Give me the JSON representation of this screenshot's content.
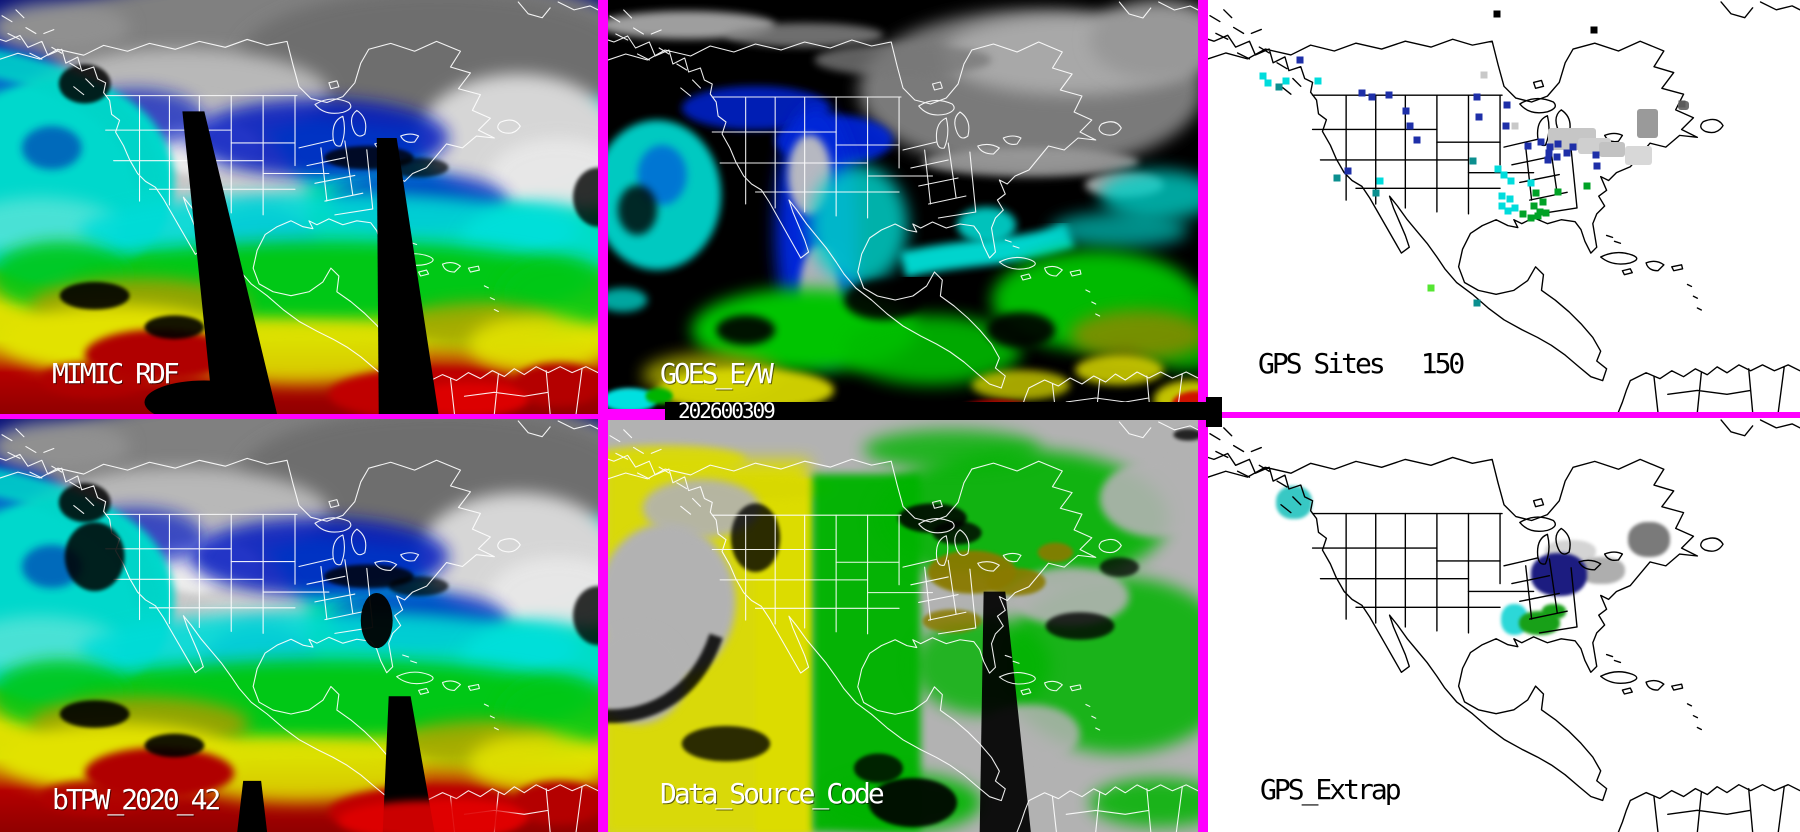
{
  "panels": {
    "mimic": {
      "label": "MIMIC RDF"
    },
    "goes": {
      "label": "GOES_E/W"
    },
    "gps_sites": {
      "label": "GPS Sites",
      "count": "150"
    },
    "btpw": {
      "label": "bTPW_2020_42"
    },
    "data_source": {
      "label": "Data_Source_Code"
    },
    "gps_extrap": {
      "label": "GPS_Extrap"
    }
  },
  "date_bar": {
    "text": "202600309"
  },
  "palette": {
    "border_magenta": "#ff00ff",
    "tpw_navy": "#0018b0",
    "tpw_cyan": "#00dcd8",
    "tpw_green": "#00c814",
    "tpw_yellow": "#e2e200",
    "tpw_khaki": "#a0a000",
    "tpw_dark_red": "#b00000",
    "tpw_red": "#e00000",
    "cloud_gray": "#b8b8b8",
    "dsc_gray": "#b2b2b2",
    "dsc_yellow": "#dcdc00",
    "dsc_green": "#00b400",
    "dsc_brown": "#8a7a00",
    "dot_navy": "#1e2fa8",
    "dot_cyan": "#00dcdc",
    "dot_teal": "#0b8f8f",
    "dot_green": "#00a226",
    "dot_light_green": "#55e632",
    "dot_gray": "#8a8a8a",
    "dot_light_gray": "#c8c8c8",
    "dot_dark_gray": "#5a5a5a",
    "dot_black": "#000000"
  },
  "gps_sites_map": {
    "dots": [
      [
        15.5,
        14.5,
        "navy"
      ],
      [
        26.0,
        22.5,
        "navy"
      ],
      [
        27.7,
        23.6,
        "navy"
      ],
      [
        30.5,
        23.0,
        "navy"
      ],
      [
        33.5,
        27.0,
        "navy"
      ],
      [
        34.2,
        30.5,
        "navy"
      ],
      [
        35.3,
        34.0,
        "navy"
      ],
      [
        45.5,
        23.5,
        "navy"
      ],
      [
        50.5,
        25.5,
        "navy"
      ],
      [
        45.8,
        28.5,
        "navy"
      ],
      [
        50.3,
        30.7,
        "navy"
      ],
      [
        54.0,
        35.5,
        "navy"
      ],
      [
        56.3,
        34.5,
        "navy"
      ],
      [
        57.8,
        35.7,
        "navy"
      ],
      [
        59.2,
        35.0,
        "navy"
      ],
      [
        57.6,
        37.2,
        "navy"
      ],
      [
        60.6,
        37.2,
        "navy"
      ],
      [
        61.7,
        35.7,
        "navy"
      ],
      [
        57.5,
        38.8,
        "navy"
      ],
      [
        59.0,
        38.0,
        "navy"
      ],
      [
        65.5,
        37.5,
        "navy"
      ],
      [
        65.7,
        40.2,
        "navy"
      ],
      [
        23.7,
        41.5,
        "navy"
      ],
      [
        9.3,
        18.5,
        "cyan"
      ],
      [
        10.2,
        20.2,
        "cyan"
      ],
      [
        13.2,
        19.6,
        "cyan"
      ],
      [
        18.5,
        19.6,
        "cyan"
      ],
      [
        49.0,
        41.0,
        "cyan"
      ],
      [
        50.0,
        42.5,
        "cyan"
      ],
      [
        51.2,
        44.0,
        "cyan"
      ],
      [
        54.5,
        44.5,
        "cyan"
      ],
      [
        49.7,
        47.6,
        "cyan"
      ],
      [
        51.0,
        48.2,
        "cyan"
      ],
      [
        49.6,
        50.0,
        "cyan"
      ],
      [
        50.7,
        51.2,
        "cyan"
      ],
      [
        51.8,
        50.4,
        "cyan"
      ],
      [
        29.0,
        44.0,
        "cyan"
      ],
      [
        12.0,
        21.0,
        "teal"
      ],
      [
        21.8,
        43.2,
        "teal"
      ],
      [
        28.3,
        46.8,
        "teal"
      ],
      [
        44.7,
        39.0,
        "teal"
      ],
      [
        45.5,
        73.5,
        "teal"
      ],
      [
        64.0,
        45.2,
        "green"
      ],
      [
        59.2,
        46.5,
        "green"
      ],
      [
        55.4,
        46.8,
        "green"
      ],
      [
        56.6,
        49.0,
        "green"
      ],
      [
        55.0,
        50.0,
        "green"
      ],
      [
        56.1,
        51.5,
        "green"
      ],
      [
        53.2,
        52.0,
        "green"
      ],
      [
        54.5,
        53.0,
        "green"
      ],
      [
        55.7,
        52.4,
        "green"
      ],
      [
        57.1,
        51.8,
        "green"
      ],
      [
        37.7,
        70.0,
        "light_green"
      ],
      [
        46.7,
        18.3,
        "light_gray"
      ],
      [
        51.8,
        30.6,
        "light_gray"
      ],
      [
        80.0,
        25.2,
        "dark_gray"
      ],
      [
        48.8,
        3.5,
        "black"
      ],
      [
        65.2,
        7.3,
        "black"
      ]
    ],
    "patches": [
      [
        57.5,
        31.0,
        8.0,
        5.5,
        "#c6c6c6"
      ],
      [
        62.5,
        33.5,
        5.5,
        4.0,
        "#cfcfcf"
      ],
      [
        66.0,
        34.5,
        4.5,
        3.5,
        "#c2c2c2"
      ],
      [
        72.4,
        26.5,
        3.6,
        7.0,
        "#9a9a9a"
      ],
      [
        70.5,
        35.5,
        4.5,
        4.5,
        "#d8d8d8"
      ],
      [
        79.4,
        24.6,
        1.8,
        2.2,
        "#6e6e6e"
      ]
    ]
  },
  "gps_extrap_map": {
    "regions": [
      [
        11.5,
        16.5,
        6.0,
        8.0,
        "#38c8c4"
      ],
      [
        57.0,
        29.5,
        8.5,
        5.5,
        "#d4d4d4"
      ],
      [
        62.5,
        33.5,
        8.0,
        6.5,
        "#aeaeae"
      ],
      [
        54.5,
        32.5,
        9.5,
        10.5,
        "#1c1c80"
      ],
      [
        71.0,
        25.0,
        7.0,
        8.5,
        "#7a7a7a"
      ],
      [
        49.5,
        45.0,
        4.5,
        7.5,
        "#2cd8d8"
      ],
      [
        52.5,
        46.5,
        7.0,
        6.0,
        "#18a018"
      ],
      [
        56.5,
        45.0,
        4.0,
        3.5,
        "#18a018"
      ]
    ]
  }
}
